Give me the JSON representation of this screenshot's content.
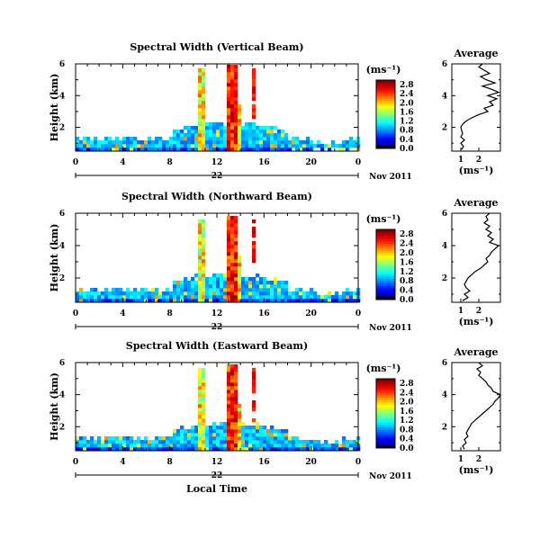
{
  "chart_data": [
    {
      "type": "heatmap",
      "title": "Spectral Width (Vertical Beam)",
      "ylabel": "Height (km)",
      "x_ticks": [
        "0",
        "4",
        "8",
        "12",
        "16",
        "20",
        "0"
      ],
      "y_ticks": [
        "2",
        "4",
        "6"
      ],
      "day_label": "22",
      "date_label": "Nov 2011",
      "xlim": [
        0,
        24
      ],
      "ylim": [
        0.5,
        6
      ],
      "colorbar": {
        "unit_label": "(ms⁻¹)",
        "ticks": [
          "0.0",
          "0.4",
          "0.8",
          "1.2",
          "1.6",
          "2.0",
          "2.4",
          "2.8"
        ]
      },
      "average": {
        "title": "Average",
        "xlabel": "(ms⁻¹)",
        "x_ticks": [
          "1",
          "2"
        ],
        "y_ticks": [
          "2",
          "4",
          "6"
        ],
        "xlim": [
          0.5,
          3.2
        ],
        "profile": [
          [
            1.05,
            0.6
          ],
          [
            1.15,
            0.8
          ],
          [
            1.0,
            1.0
          ],
          [
            1.2,
            1.2
          ],
          [
            1.0,
            1.4
          ],
          [
            1.1,
            1.6
          ],
          [
            1.05,
            1.8
          ],
          [
            1.0,
            2.0
          ],
          [
            1.1,
            2.2
          ],
          [
            1.3,
            2.4
          ],
          [
            1.6,
            2.6
          ],
          [
            2.0,
            2.8
          ],
          [
            2.5,
            3.0
          ],
          [
            2.3,
            3.2
          ],
          [
            2.8,
            3.4
          ],
          [
            2.6,
            3.6
          ],
          [
            3.0,
            3.8
          ],
          [
            2.5,
            4.0
          ],
          [
            3.1,
            4.2
          ],
          [
            2.7,
            4.4
          ],
          [
            2.2,
            4.6
          ],
          [
            2.9,
            4.8
          ],
          [
            2.4,
            5.0
          ],
          [
            2.1,
            5.2
          ],
          [
            2.6,
            5.4
          ],
          [
            2.3,
            5.6
          ],
          [
            2.0,
            5.8
          ],
          [
            2.2,
            6.0
          ]
        ]
      }
    },
    {
      "type": "heatmap",
      "title": "Spectral Width (Northward Beam)",
      "ylabel": "Height (km)",
      "x_ticks": [
        "0",
        "4",
        "8",
        "12",
        "16",
        "20",
        "0"
      ],
      "y_ticks": [
        "2",
        "4",
        "6"
      ],
      "day_label": "22",
      "date_label": "Nov 2011",
      "xlim": [
        0,
        24
      ],
      "ylim": [
        0.5,
        6
      ],
      "colorbar": {
        "unit_label": "(ms⁻¹)",
        "ticks": [
          "0.0",
          "0.4",
          "0.8",
          "1.2",
          "1.6",
          "2.0",
          "2.4",
          "2.8"
        ]
      },
      "average": {
        "title": "Average",
        "xlabel": "(ms⁻¹)",
        "x_ticks": [
          "1",
          "2"
        ],
        "y_ticks": [
          "2",
          "4",
          "6"
        ],
        "xlim": [
          0.5,
          3.2
        ],
        "profile": [
          [
            1.1,
            0.6
          ],
          [
            1.4,
            0.8
          ],
          [
            1.2,
            1.0
          ],
          [
            1.5,
            1.2
          ],
          [
            1.3,
            1.4
          ],
          [
            1.2,
            1.6
          ],
          [
            1.3,
            1.8
          ],
          [
            1.4,
            2.0
          ],
          [
            1.6,
            2.2
          ],
          [
            1.8,
            2.4
          ],
          [
            2.1,
            2.6
          ],
          [
            2.3,
            2.8
          ],
          [
            2.5,
            3.0
          ],
          [
            2.4,
            3.2
          ],
          [
            2.6,
            3.4
          ],
          [
            2.7,
            3.6
          ],
          [
            2.9,
            3.8
          ],
          [
            3.1,
            4.0
          ],
          [
            2.6,
            4.2
          ],
          [
            2.8,
            4.4
          ],
          [
            2.5,
            4.6
          ],
          [
            2.7,
            4.8
          ],
          [
            2.4,
            5.0
          ],
          [
            2.6,
            5.2
          ],
          [
            2.3,
            5.4
          ],
          [
            2.5,
            5.6
          ],
          [
            2.4,
            5.8
          ],
          [
            2.6,
            6.0
          ]
        ]
      }
    },
    {
      "type": "heatmap",
      "title": "Spectral Width (Eastward Beam)",
      "ylabel": "Height (km)",
      "x_ticks": [
        "0",
        "4",
        "8",
        "12",
        "16",
        "20",
        "0"
      ],
      "y_ticks": [
        "2",
        "4",
        "6"
      ],
      "day_label": "22",
      "date_label": "Nov 2011",
      "xaxis_label": "Local Time",
      "xlim": [
        0,
        24
      ],
      "ylim": [
        0.5,
        6
      ],
      "colorbar": {
        "unit_label": "(ms⁻¹)",
        "ticks": [
          "0.0",
          "0.4",
          "0.8",
          "1.2",
          "1.6",
          "2.0",
          "2.4",
          "2.8"
        ]
      },
      "average": {
        "title": "Average",
        "xlabel": "(ms⁻¹)",
        "x_ticks": [
          "1",
          "2"
        ],
        "y_ticks": [
          "2",
          "4",
          "6"
        ],
        "xlim": [
          0.5,
          3.2
        ],
        "profile": [
          [
            1.2,
            0.6
          ],
          [
            1.1,
            0.8
          ],
          [
            1.3,
            1.0
          ],
          [
            1.2,
            1.2
          ],
          [
            1.4,
            1.4
          ],
          [
            1.3,
            1.6
          ],
          [
            1.4,
            1.8
          ],
          [
            1.5,
            2.0
          ],
          [
            1.6,
            2.2
          ],
          [
            1.8,
            2.4
          ],
          [
            2.0,
            2.6
          ],
          [
            2.2,
            2.8
          ],
          [
            2.4,
            3.0
          ],
          [
            2.6,
            3.2
          ],
          [
            2.8,
            3.4
          ],
          [
            2.9,
            3.6
          ],
          [
            3.1,
            3.8
          ],
          [
            3.2,
            4.0
          ],
          [
            2.8,
            4.2
          ],
          [
            2.7,
            4.4
          ],
          [
            2.5,
            4.6
          ],
          [
            2.4,
            4.8
          ],
          [
            2.2,
            5.0
          ],
          [
            2.0,
            5.2
          ],
          [
            2.1,
            5.4
          ],
          [
            1.9,
            5.6
          ],
          [
            2.2,
            5.8
          ],
          [
            2.0,
            6.0
          ]
        ]
      }
    }
  ]
}
